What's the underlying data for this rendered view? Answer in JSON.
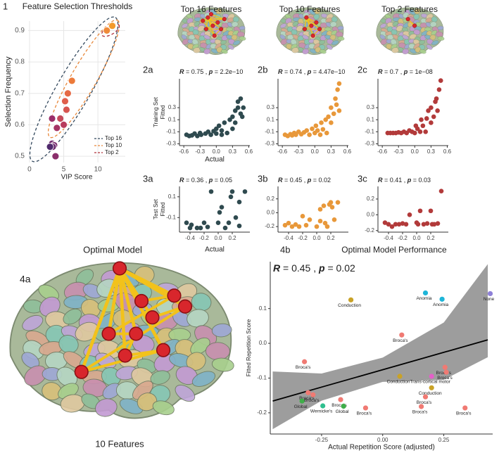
{
  "chart_data": [
    {
      "type": "scatter",
      "panel_label": "1",
      "title": "Feature Selection Thresholds",
      "xlabel": "VIP Score",
      "ylabel": [
        "Selection Frequency"
      ],
      "xlim": [
        -0.2,
        14
      ],
      "ylim": [
        0.48,
        0.93
      ],
      "xticks": [
        0,
        5,
        10
      ],
      "yticks": [
        0.5,
        0.6,
        0.7,
        0.8,
        0.9
      ],
      "grid": true,
      "x": [
        12.1,
        11.3,
        6.2,
        5.6,
        5.2,
        5.4,
        4.5,
        3.3,
        5.0,
        4.0,
        3.3,
        3.6,
        3.2,
        3.8,
        3.4,
        3.0
      ],
      "values": [
        0.915,
        0.9,
        0.74,
        0.7,
        0.675,
        0.648,
        0.62,
        0.62,
        0.6,
        0.59,
        0.54,
        0.535,
        0.528,
        0.5,
        0.53,
        0.53
      ],
      "point_colors": [
        "#f39a2b",
        "#ef8a3a",
        "#ec7a3a",
        "#e56a45",
        "#df5f4c",
        "#d65550",
        "#c44a5a",
        "#9a2f6a",
        "#b83c5d",
        "#a43465",
        "#6e2a6e",
        "#7a2c6d",
        "#5c2b6e",
        "#8a2e6b",
        "#6b2b6f",
        "#502a6c"
      ],
      "groups": [
        {
          "name": "Top 16",
          "color": "#34495e"
        },
        {
          "name": "Top 10",
          "color": "#e8873a"
        },
        {
          "name": "Top 2",
          "color": "#b0303a"
        }
      ],
      "legend_position": "bottom-right"
    },
    {
      "type": "scatter",
      "panel_label": "2a",
      "title": "Top 16 Features",
      "xlabel": "Actual",
      "ylabel": [
        "Training Set",
        "Fitted"
      ],
      "stat_text": [
        "R",
        " = 0.75 , ",
        "p",
        " = 2.2e−10"
      ],
      "color": "#2f4a4f",
      "xlim": [
        -0.68,
        0.62
      ],
      "ylim": [
        -0.33,
        0.78
      ],
      "xticks": [
        -0.6,
        -0.3,
        {
          "value": 0,
          "label": "0.0"
        },
        0.3,
        0.6
      ],
      "yticks": [
        -0.3,
        -0.1,
        0.1,
        0.3
      ],
      "x": [
        -0.55,
        -0.5,
        -0.45,
        -0.4,
        -0.35,
        -0.3,
        -0.28,
        -0.2,
        -0.15,
        -0.1,
        -0.05,
        0.0,
        0.0,
        0.05,
        0.1,
        0.1,
        0.15,
        0.2,
        0.25,
        0.3,
        0.3,
        0.35,
        0.35,
        0.4,
        0.4,
        0.45,
        0.45,
        0.5,
        0.48
      ],
      "values": [
        -0.15,
        -0.17,
        -0.16,
        -0.13,
        -0.17,
        -0.12,
        -0.15,
        -0.13,
        -0.1,
        -0.15,
        -0.09,
        -0.13,
        -0.05,
        0.0,
        -0.15,
        -0.08,
        0.05,
        -0.12,
        0.1,
        -0.05,
        0.15,
        0.25,
        0.05,
        0.3,
        0.4,
        0.2,
        0.45,
        0.3,
        0.15
      ]
    },
    {
      "type": "scatter",
      "panel_label": "2b",
      "title": "Top 10 Features",
      "stat_text": [
        "R",
        " = 0.74 , ",
        "p",
        " = 4.47e−10"
      ],
      "color": "#e8983a",
      "xlim": [
        -0.68,
        0.62
      ],
      "ylim": [
        -0.33,
        0.78
      ],
      "xticks": [
        -0.6,
        -0.3,
        {
          "value": 0,
          "label": "0.0"
        },
        0.3,
        0.6
      ],
      "yticks": [
        -0.3,
        -0.1,
        0.1,
        0.3
      ],
      "x": [
        -0.55,
        -0.5,
        -0.45,
        -0.42,
        -0.38,
        -0.35,
        -0.3,
        -0.25,
        -0.2,
        -0.15,
        -0.1,
        -0.05,
        0,
        0.02,
        0.05,
        0.1,
        0.12,
        0.15,
        0.2,
        0.22,
        0.25,
        0.3,
        0.3,
        0.35,
        0.38,
        0.4,
        0.42,
        0.45,
        0.45
      ],
      "values": [
        -0.15,
        -0.17,
        -0.14,
        -0.16,
        -0.12,
        -0.15,
        -0.1,
        -0.14,
        -0.11,
        -0.08,
        -0.15,
        -0.05,
        -0.12,
        0,
        -0.08,
        -0.15,
        0.05,
        -0.06,
        0.1,
        -0.12,
        0.15,
        0.05,
        0.3,
        0.2,
        0.45,
        0.35,
        0.6,
        0.7,
        0.25
      ]
    },
    {
      "type": "scatter",
      "panel_label": "2c",
      "title": "Top 2 Features",
      "stat_text": [
        "R",
        " = 0.7 , ",
        "p",
        " = 1e−08"
      ],
      "color": "#b23a3a",
      "xlim": [
        -0.68,
        0.62
      ],
      "ylim": [
        -0.33,
        0.78
      ],
      "xticks": [
        -0.6,
        -0.3,
        {
          "value": 0,
          "label": "0.0"
        },
        0.3,
        0.6
      ],
      "yticks": [
        -0.3,
        -0.1,
        0.1,
        0.3
      ],
      "x": [
        -0.5,
        -0.45,
        -0.4,
        -0.35,
        -0.3,
        -0.25,
        -0.2,
        -0.15,
        -0.1,
        -0.05,
        0,
        0.02,
        0.05,
        0.1,
        0.12,
        0.15,
        0.2,
        0.22,
        0.25,
        0.3,
        0.3,
        0.35,
        0.38,
        0.4,
        0.42,
        0.45,
        0.48
      ],
      "values": [
        -0.12,
        -0.12,
        -0.12,
        -0.12,
        -0.11,
        -0.12,
        -0.1,
        -0.12,
        -0.08,
        -0.1,
        -0.12,
        0.0,
        -0.05,
        -0.1,
        0.1,
        0.0,
        -0.1,
        0.12,
        0.25,
        0.05,
        0.3,
        0.15,
        0.4,
        0.45,
        0.25,
        0.6,
        0.75
      ]
    },
    {
      "type": "scatter",
      "panel_label": "3a",
      "xlabel": "Actual",
      "ylabel": [
        "Test Set",
        "Fitted"
      ],
      "stat_text": [
        "R",
        " = 0.36 , ",
        "p",
        " = 0.05"
      ],
      "color": "#2f4a4f",
      "xlim": [
        -0.55,
        0.45
      ],
      "ylim": [
        -0.24,
        0.2
      ],
      "xticks": [
        -0.4,
        -0.2,
        {
          "value": 0,
          "label": "0.0"
        },
        0.2
      ],
      "yticks": [
        -0.1,
        0.1
      ],
      "x": [
        -0.45,
        -0.4,
        -0.38,
        -0.3,
        -0.25,
        -0.2,
        -0.15,
        -0.1,
        0.0,
        0.02,
        0.05,
        0.1,
        0.15,
        0.18,
        0.2,
        0.25,
        0.3,
        0.38,
        0.3
      ],
      "values": [
        -0.15,
        -0.2,
        -0.17,
        -0.2,
        -0.2,
        -0.15,
        -0.19,
        0.15,
        -0.15,
        -0.05,
        0.0,
        -0.2,
        -0.15,
        0.1,
        0.15,
        -0.1,
        0.05,
        0.15,
        -0.18
      ]
    },
    {
      "type": "scatter",
      "panel_label": "3b",
      "stat_text": [
        "R",
        " = 0.45 , ",
        "p",
        " = 0.02"
      ],
      "color": "#e8983a",
      "xlim": [
        -0.55,
        0.45
      ],
      "ylim": [
        -0.28,
        0.38
      ],
      "xticks": [
        -0.4,
        -0.2,
        {
          "value": 0,
          "label": "0.0"
        },
        0.2
      ],
      "yticks": [
        -0.2,
        {
          "value": 0,
          "label": "0.0"
        },
        0.2
      ],
      "x": [
        -0.45,
        -0.4,
        -0.35,
        -0.3,
        -0.25,
        -0.2,
        -0.15,
        -0.1,
        0,
        0.05,
        0.1,
        0.12,
        0.15,
        0.18,
        0.2,
        0.22,
        0.25,
        0.3,
        0.05
      ],
      "values": [
        -0.18,
        -0.15,
        -0.2,
        -0.17,
        -0.2,
        -0.05,
        -0.18,
        -0.1,
        -0.2,
        0.05,
        0.1,
        -0.15,
        -0.2,
        0.12,
        0.15,
        0.08,
        -0.1,
        0.15,
        -0.12
      ]
    },
    {
      "type": "scatter",
      "panel_label": "3c",
      "stat_text": [
        "R",
        " = 0.41 , ",
        "p",
        " = 0.03"
      ],
      "color": "#b23a3a",
      "xlim": [
        -0.55,
        0.45
      ],
      "ylim": [
        -0.22,
        0.36
      ],
      "xticks": [
        -0.4,
        -0.2,
        {
          "value": 0,
          "label": "0.0"
        },
        0.2
      ],
      "yticks": [
        -0.2,
        {
          "value": 0,
          "label": "0.0"
        },
        0.2
      ],
      "x": [
        -0.45,
        -0.4,
        -0.35,
        -0.3,
        -0.25,
        -0.2,
        -0.15,
        -0.1,
        0,
        0.02,
        0.05,
        0.1,
        0.15,
        0.2,
        0.22,
        0.25,
        0.3,
        0.35
      ],
      "values": [
        -0.1,
        -0.12,
        -0.15,
        -0.12,
        -0.12,
        -0.11,
        -0.12,
        0,
        -0.1,
        -0.12,
        0.05,
        -0.12,
        -0.11,
        0.05,
        -0.12,
        -0.12,
        -0.11,
        0.3
      ]
    },
    {
      "type": "scatter",
      "panel_label": "4b",
      "title": "Optimal Model Performance",
      "xlabel": "Actual Repetition Score (adjusted)",
      "ylabel": [
        "Fitted  Repetition Score"
      ],
      "stat_text": [
        "R",
        " = 0.45 , ",
        "p",
        " = 0.02"
      ],
      "xlim": [
        -0.46,
        0.45
      ],
      "ylim": [
        -0.261,
        0.235
      ],
      "xticks": [
        -0.25,
        {
          "value": 0,
          "label": "0.00"
        },
        0.25
      ],
      "yticks": [
        -0.2,
        -0.1,
        {
          "value": 0,
          "label": "0.0"
        },
        0.1
      ],
      "x": [
        -0.13,
        0.175,
        0.243,
        0.44,
        0.078,
        -0.32,
        0.2,
        0.255,
        0.26,
        0.07,
        0.2,
        -0.305,
        -0.285,
        -0.172,
        -0.245,
        -0.33,
        -0.16,
        -0.07,
        0.175,
        0.158,
        0.337
      ],
      "values": [
        0.125,
        0.145,
        0.127,
        0.143,
        0.024,
        -0.053,
        -0.095,
        -0.069,
        -0.083,
        -0.095,
        -0.128,
        -0.142,
        -0.148,
        -0.162,
        -0.18,
        -0.166,
        -0.181,
        -0.186,
        -0.154,
        -0.182,
        -0.186
      ],
      "point_labels": [
        "Conduction",
        "Anomia",
        "Anomia",
        "None",
        "Broca's",
        "Broca's",
        "Trans-cortical motor",
        "Broca's",
        "Broca's",
        "Conduction",
        "Conduction",
        "Broca's",
        "Broca's",
        "Broca's",
        "Wernicke's",
        "Global",
        "Global",
        "Broca's",
        "Broca's",
        "Broca's",
        "Broca's"
      ],
      "point_colors": [
        "#c9a227",
        "#1eb5d8",
        "#1eb5d8",
        "#8e80d8",
        "#f07a73",
        "#f07a73",
        "#e45fc8",
        "#f07a73",
        "#f07a73",
        "#c9a227",
        "#c9a227",
        "#f07a73",
        "#f07a73",
        "#f07a73",
        "#2fbf8f",
        "#3fae49",
        "#3fae49",
        "#f07a73",
        "#f07a73",
        "#f07a73",
        "#f07a73"
      ],
      "fit": {
        "x": [
          -0.45,
          -0.25,
          0,
          0.25,
          0.43
        ],
        "values": [
          -0.166,
          -0.126,
          -0.076,
          -0.026,
          0.01
        ],
        "upper": [
          -0.081,
          -0.087,
          -0.041,
          0.06,
          0.228
        ],
        "lower": [
          -0.247,
          -0.165,
          -0.111,
          -0.105,
          -0.04
        ]
      }
    }
  ],
  "figure_4a": {
    "panel_label": "4a",
    "title": "Optimal Model",
    "caption": "10 Features"
  }
}
